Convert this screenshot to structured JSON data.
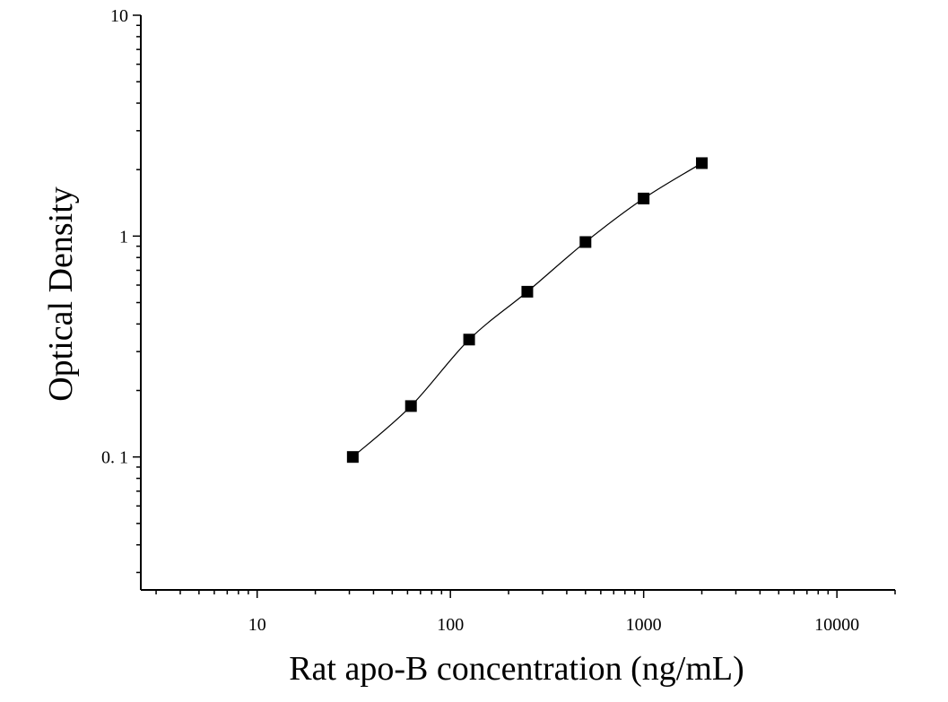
{
  "chart_data": {
    "type": "scatter",
    "xlabel": "Rat apo-B concentration (ng/mL)",
    "ylabel": "Optical Density",
    "xscale": "log",
    "yscale": "log",
    "xlim": [
      2.5,
      20000
    ],
    "ylim": [
      0.025,
      10
    ],
    "x_ticks": [
      10,
      100,
      1000,
      10000
    ],
    "x_tick_labels": [
      "10",
      "100",
      "1000",
      "10000"
    ],
    "y_ticks": [
      0.1,
      1,
      10
    ],
    "y_tick_labels": [
      "0. 1",
      "1",
      "10"
    ],
    "series": [
      {
        "x": [
          31.25,
          62.5,
          125,
          250,
          500,
          1000,
          2000
        ],
        "y": [
          0.1,
          0.17,
          0.34,
          0.56,
          0.94,
          1.48,
          2.14
        ]
      }
    ],
    "fit_curve": true,
    "grid": false,
    "marker": "square",
    "color": "#000000"
  }
}
